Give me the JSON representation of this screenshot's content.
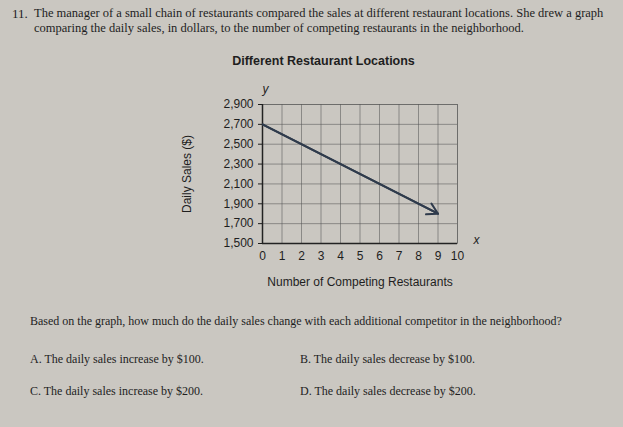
{
  "question_number": "11.",
  "intro": "The manager of a small chain of restaurants compared the sales at different restaurant locations. She drew a graph comparing the daily sales, in dollars, to the number of competing restaurants in the neighborhood.",
  "chart_data": {
    "type": "line",
    "title": "Different Restaurant Locations",
    "xlabel": "Number of Competing Restaurants",
    "ylabel": "Daily Sales ($)",
    "annotations": [
      "x",
      "y"
    ],
    "x": [
      0,
      9
    ],
    "values": [
      2700,
      1800
    ],
    "color": "#2f3b4c",
    "marker": "arrow",
    "xlim": [
      0,
      10
    ],
    "xticks": [
      0,
      1,
      2,
      3,
      4,
      5,
      6,
      7,
      8,
      9,
      10
    ],
    "ylim": [
      1500,
      2900
    ],
    "yticks": [
      {
        "value": 1500,
        "label": "1,500"
      },
      {
        "value": 1700,
        "label": "1,700"
      },
      {
        "value": 1900,
        "label": "1,900"
      },
      {
        "value": 2100,
        "label": "2,100"
      },
      {
        "value": 2300,
        "label": "2,300"
      },
      {
        "value": 2500,
        "label": "2,500"
      },
      {
        "value": 2700,
        "label": "2,700"
      },
      {
        "value": 2900,
        "label": "2,900"
      }
    ],
    "grid": true
  },
  "prompt": "Based on the graph, how much do the daily sales change with each additional competitor in the neighborhood?",
  "choices": [
    {
      "letter": "A.",
      "text": "The daily sales increase by $100."
    },
    {
      "letter": "B.",
      "text": "The daily sales decrease by $100."
    },
    {
      "letter": "C.",
      "text": "The daily sales increase by $200."
    },
    {
      "letter": "D.",
      "text": "The daily sales decrease by $200."
    }
  ]
}
